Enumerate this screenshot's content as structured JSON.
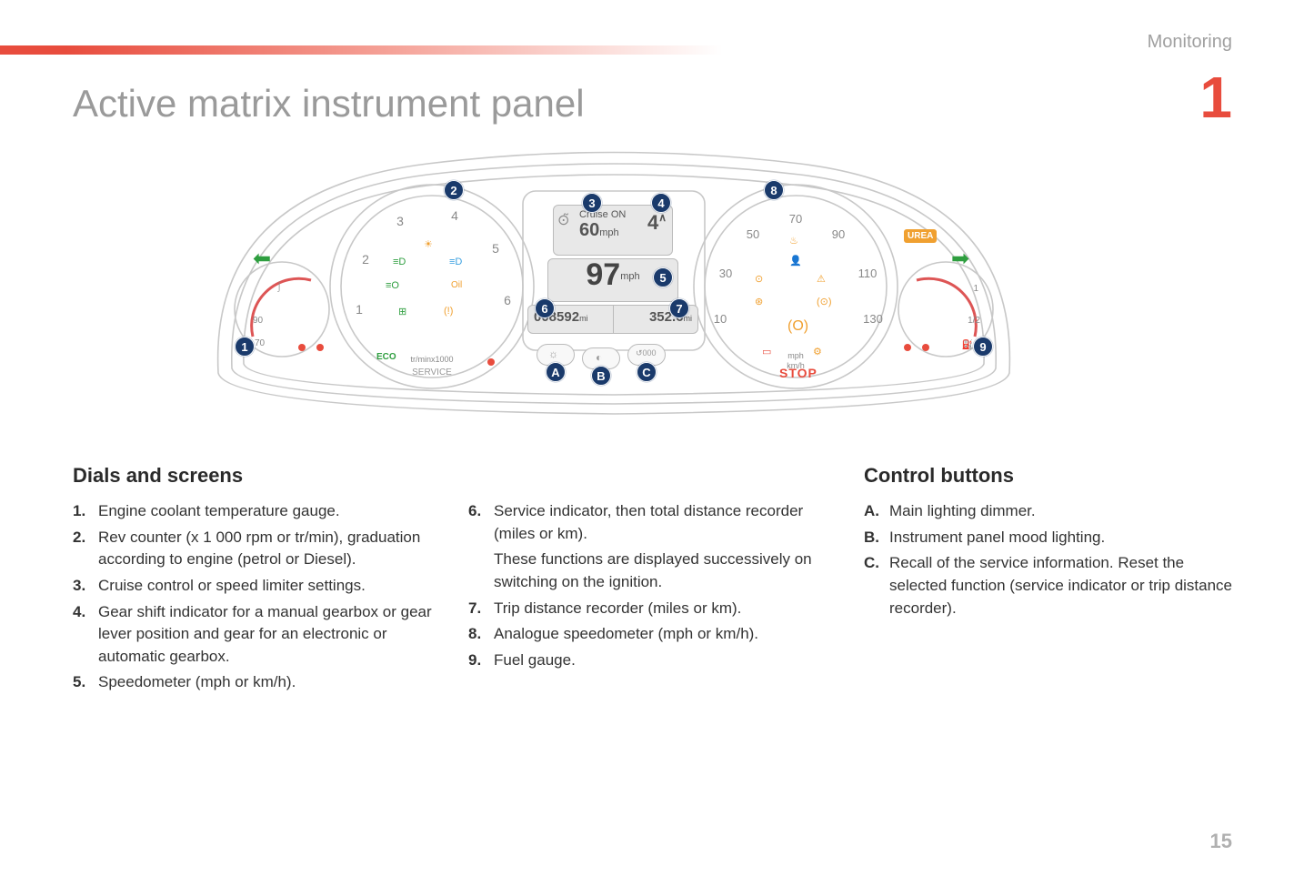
{
  "header": {
    "section": "Monitoring",
    "chapter_number": "1",
    "page_number": "15",
    "title": "Active matrix instrument panel"
  },
  "diagram": {
    "outline_color": "#c8c8c8",
    "callout_bg": "#1a3a6b",
    "callout_fg": "#ffffff",
    "lcd": {
      "cruise_label": "Cruise ON",
      "cruise_value": "60",
      "cruise_unit": "mph",
      "gear": "4",
      "gear_arrow": "∧",
      "speed": "97",
      "speed_unit": "mph",
      "odo": "008592",
      "odo_unit": "mi",
      "trip": "352.6",
      "trip_unit": "mi"
    },
    "tacho": {
      "ticks": [
        "1",
        "2",
        "3",
        "4",
        "5",
        "6"
      ],
      "label1": "tr/minx1000",
      "label2": "SERVICE",
      "eco": "ECO"
    },
    "speedo": {
      "ticks": [
        "10",
        "30",
        "50",
        "70",
        "90",
        "110",
        "130"
      ],
      "stop": "STOP",
      "unit1": "mph",
      "unit2": "km/h"
    },
    "urea": "UREA",
    "arrows": {
      "left": "⬅",
      "right": "➡"
    },
    "arrow_left_color": "#2e9e3f",
    "arrow_right_color": "#2e9e3f",
    "callouts": [
      "1",
      "2",
      "3",
      "4",
      "5",
      "6",
      "7",
      "8",
      "9"
    ],
    "button_callouts": [
      "A",
      "B",
      "C"
    ],
    "warning_icons": {
      "tacho": [
        {
          "glyph": "☀",
          "color": "#f0a030"
        },
        {
          "glyph": "≡D",
          "color": "#3aa0e0"
        },
        {
          "glyph": "≡D",
          "color": "#2e9e3f"
        },
        {
          "glyph": "≡O",
          "color": "#2e9e3f"
        },
        {
          "glyph": "Oil",
          "color": "#f0a030"
        },
        {
          "glyph": "⚠",
          "color": "#2e9e3f"
        },
        {
          "glyph": "(!)",
          "color": "#f0a030"
        }
      ],
      "speedo": [
        {
          "glyph": "🔥",
          "color": "#f0a030"
        },
        {
          "glyph": "👤",
          "color": "#e84c3d"
        },
        {
          "glyph": "⊙",
          "color": "#f0a030"
        },
        {
          "glyph": "(O)",
          "color": "#f0a030"
        },
        {
          "glyph": "⚙",
          "color": "#f0a030"
        },
        {
          "glyph": "◐",
          "color": "#e84c3d"
        }
      ]
    }
  },
  "dials_heading": "Dials and screens",
  "dials_col1": [
    {
      "n": "1.",
      "t": "Engine coolant temperature gauge."
    },
    {
      "n": "2.",
      "t": "Rev counter (x 1 000 rpm or tr/min), graduation according to engine (petrol or Diesel)."
    },
    {
      "n": "3.",
      "t": "Cruise control or speed limiter settings."
    },
    {
      "n": "4.",
      "t": "Gear shift indicator for a manual gearbox or gear lever position and gear for an electronic or automatic gearbox."
    },
    {
      "n": "5.",
      "t": "Speedometer (mph or km/h)."
    }
  ],
  "dials_col2": [
    {
      "n": "6.",
      "t": "Service indicator, then total distance recorder (miles or km)."
    },
    {
      "n": "",
      "t": "These functions are displayed successively on switching on the ignition."
    },
    {
      "n": "7.",
      "t": "Trip distance recorder (miles or km)."
    },
    {
      "n": "8.",
      "t": "Analogue speedometer (mph or km/h)."
    },
    {
      "n": "9.",
      "t": "Fuel gauge."
    }
  ],
  "controls_heading": "Control buttons",
  "controls": [
    {
      "n": "A.",
      "t": "Main lighting dimmer."
    },
    {
      "n": "B.",
      "t": "Instrument panel mood lighting."
    },
    {
      "n": "C.",
      "t": "Recall of the service information. Reset the selected function (service indicator or trip distance recorder)."
    }
  ]
}
